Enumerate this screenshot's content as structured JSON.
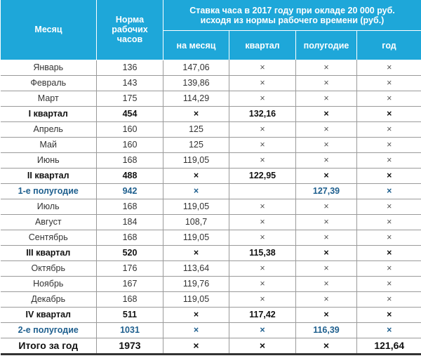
{
  "header": {
    "month": "Месяц",
    "norm": "Норма рабочих часов",
    "group": "Ставка часа в 2017 году при окладе 20 000 руб. исходя из нормы рабочего времени  (руб.)",
    "sub": [
      "на месяц",
      "квартал",
      "полугодие",
      "год"
    ]
  },
  "rows": [
    {
      "type": "m",
      "c": [
        "Январь",
        "136",
        "147,06",
        "×",
        "×",
        "×"
      ]
    },
    {
      "type": "m",
      "c": [
        "Февраль",
        "143",
        "139,86",
        "×",
        "×",
        "×"
      ]
    },
    {
      "type": "m",
      "c": [
        "Март",
        "175",
        "114,29",
        "×",
        "×",
        "×"
      ]
    },
    {
      "type": "bold",
      "c": [
        "I квартал",
        "454",
        "×",
        "132,16",
        "×",
        "×"
      ]
    },
    {
      "type": "m",
      "c": [
        "Апрель",
        "160",
        "125",
        "×",
        "×",
        "×"
      ]
    },
    {
      "type": "m",
      "c": [
        "Май",
        "160",
        "125",
        "×",
        "×",
        "×"
      ]
    },
    {
      "type": "m",
      "c": [
        "Июнь",
        "168",
        "119,05",
        "×",
        "×",
        "×"
      ]
    },
    {
      "type": "bold",
      "c": [
        "II квартал",
        "488",
        "×",
        "122,95",
        "×",
        "×"
      ]
    },
    {
      "type": "blue",
      "c": [
        "1-е полугодие",
        "942",
        "×",
        "",
        "127,39",
        "×"
      ]
    },
    {
      "type": "m",
      "c": [
        "Июль",
        "168",
        "119,05",
        "×",
        "×",
        "×"
      ]
    },
    {
      "type": "m",
      "c": [
        "Август",
        "184",
        "108,7",
        "×",
        "×",
        "×"
      ]
    },
    {
      "type": "m",
      "c": [
        "Сентябрь",
        "168",
        "119,05",
        "×",
        "×",
        "×"
      ]
    },
    {
      "type": "bold",
      "c": [
        "III квартал",
        "520",
        "×",
        "115,38",
        "×",
        "×"
      ]
    },
    {
      "type": "m",
      "c": [
        "Октябрь",
        "176",
        "113,64",
        "×",
        "×",
        "×"
      ]
    },
    {
      "type": "m",
      "c": [
        "Ноябрь",
        "167",
        "119,76",
        "×",
        "×",
        "×"
      ]
    },
    {
      "type": "m",
      "c": [
        "Декабрь",
        "168",
        "119,05",
        "×",
        "×",
        "×"
      ]
    },
    {
      "type": "bold",
      "c": [
        "IV квартал",
        "511",
        "×",
        "117,42",
        "×",
        "×"
      ]
    },
    {
      "type": "blue",
      "c": [
        "2-е полугодие",
        "1031",
        "×",
        "×",
        "116,39",
        "×"
      ]
    },
    {
      "type": "total",
      "c": [
        "Итого за год",
        "1973",
        "×",
        "×",
        "×",
        "121,64"
      ]
    }
  ]
}
